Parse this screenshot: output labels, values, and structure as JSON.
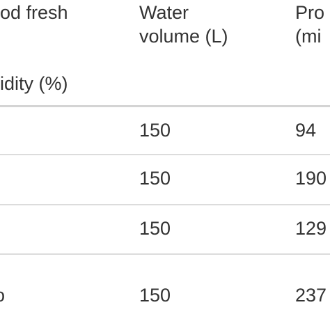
{
  "header": {
    "col1_line1": "od fresh",
    "col1_line2": "idity (%)",
    "col2_line1": "Water",
    "col2_line2": "volume (L)",
    "col3_line1": "Pro",
    "col3_line2": "(mi"
  },
  "rows": [
    {
      "water": "150",
      "value": "94"
    },
    {
      "water": "150",
      "value": "190"
    },
    {
      "water": "150",
      "value": "129"
    },
    {
      "first": "o",
      "water": "150",
      "value": "237"
    }
  ]
}
